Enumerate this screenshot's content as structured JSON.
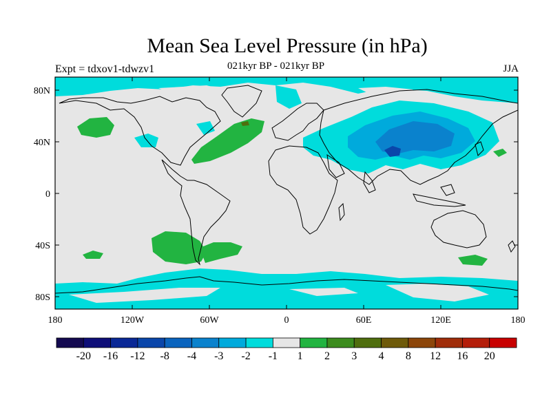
{
  "title": "Mean Sea Level Pressure (in hPa)",
  "subtitle_left": "Expt = tdxov1-tdwzv1",
  "subtitle_center": "021kyr BP - 021kyr BP",
  "subtitle_right": "JJA",
  "lat_labels": [
    "80N",
    "40N",
    "0",
    "40S",
    "80S"
  ],
  "lon_labels": [
    "180",
    "120W",
    "60W",
    "0",
    "60E",
    "120E",
    "180"
  ],
  "colorbar": {
    "colors": [
      "#140a50",
      "#0e0e78",
      "#0a2896",
      "#0a46aa",
      "#0a64be",
      "#0a82cd",
      "#00aadc",
      "#00dcdc",
      "#e6e6e6",
      "#22b441",
      "#3c8c1e",
      "#4f6e0e",
      "#6e5a0a",
      "#8c460a",
      "#a02d0a",
      "#b41e0a",
      "#c80000"
    ],
    "labels": [
      "-20",
      "-16",
      "-12",
      "-8",
      "-4",
      "-3",
      "-2",
      "-1",
      "1",
      "2",
      "3",
      "4",
      "8",
      "12",
      "16",
      "20"
    ]
  },
  "map_colors": {
    "background": "#e6e6e6",
    "neg1": "#00dcdc",
    "neg2": "#00aadc",
    "neg3": "#0a82cd",
    "neg4": "#0a46aa",
    "pos1": "#22b441",
    "pos2": "#4f6e0e",
    "coast": "#000000"
  }
}
